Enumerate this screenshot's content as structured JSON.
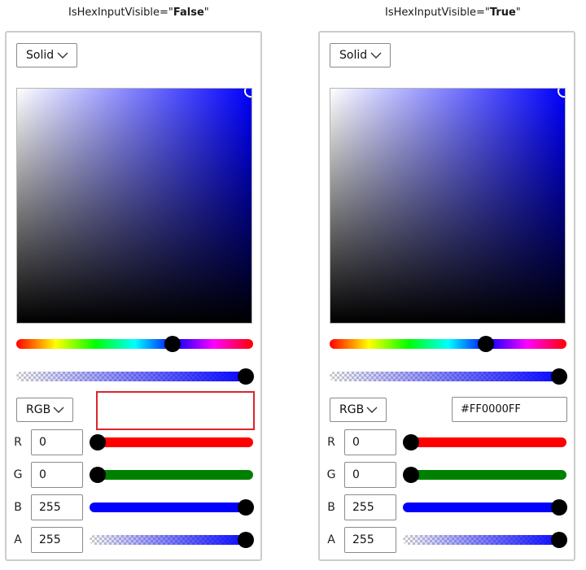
{
  "captions": [
    {
      "prefix": "IsHexInputVisible=\"",
      "value": "False",
      "suffix": "\""
    },
    {
      "prefix": "IsHexInputVisible=\"",
      "value": "True",
      "suffix": "\""
    }
  ],
  "pickers": [
    {
      "mode": "Solid",
      "color_model": "RGB",
      "color": "#0000FF",
      "hue": 240,
      "hex_value": "",
      "channels": [
        {
          "label": "R",
          "value": "0",
          "fraction": 0,
          "color": "#ff0000"
        },
        {
          "label": "G",
          "value": "0",
          "fraction": 0,
          "color": "#008000"
        },
        {
          "label": "B",
          "value": "255",
          "fraction": 1,
          "color": "#0000ff"
        },
        {
          "label": "A",
          "value": "255",
          "fraction": 1,
          "color": "#0000ff"
        }
      ],
      "hue_fraction": 0.6667,
      "alpha_fraction": 1
    },
    {
      "mode": "Solid",
      "color_model": "RGB",
      "color": "#0000FF",
      "hue": 240,
      "hex_value": "#FF0000FF",
      "channels": [
        {
          "label": "R",
          "value": "0",
          "fraction": 0,
          "color": "#ff0000"
        },
        {
          "label": "G",
          "value": "0",
          "fraction": 0,
          "color": "#008000"
        },
        {
          "label": "B",
          "value": "255",
          "fraction": 1,
          "color": "#0000ff"
        },
        {
          "label": "A",
          "value": "255",
          "fraction": 1,
          "color": "#0000ff"
        }
      ],
      "hue_fraction": 0.6667,
      "alpha_fraction": 1
    }
  ],
  "colors": {
    "highlight_border": "#d9262c",
    "panel_border": "#cccccc"
  }
}
